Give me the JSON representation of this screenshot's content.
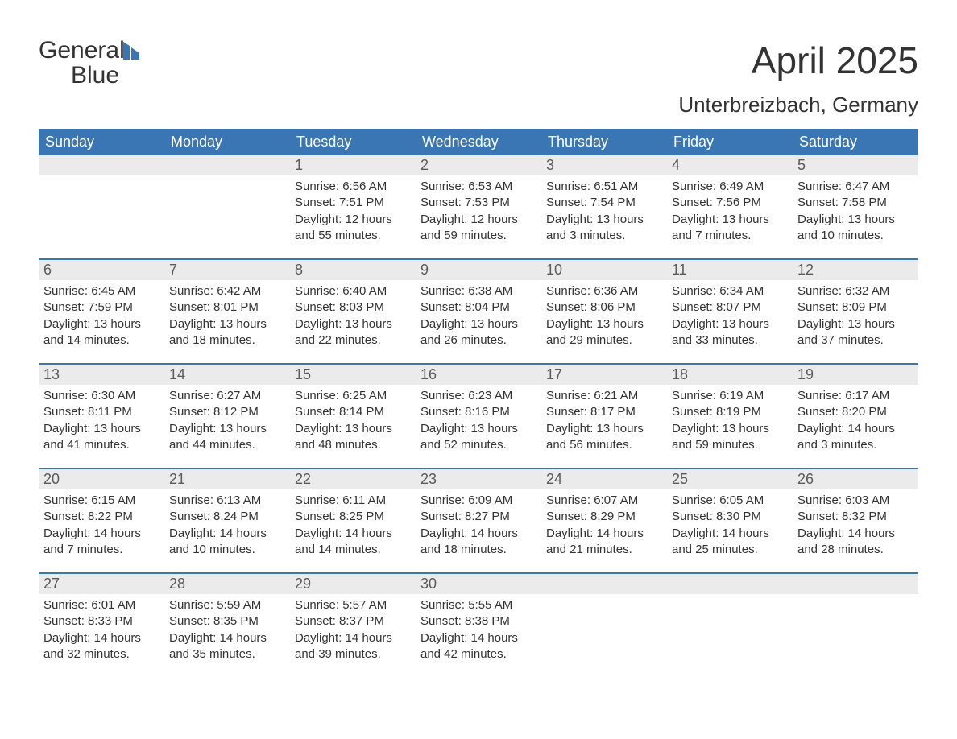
{
  "logo": {
    "word1": "General",
    "word2": "Blue",
    "icon_color": "#3976b3"
  },
  "title": "April 2025",
  "location": "Unterbreizbach, Germany",
  "colors": {
    "header_bg": "#3976b3",
    "header_text": "#ffffff",
    "daynum_bg": "#ebebeb",
    "divider": "#3976b3",
    "text": "#333333",
    "muted_text": "#5a5a5a",
    "page_bg": "#ffffff"
  },
  "weekdays": [
    "Sunday",
    "Monday",
    "Tuesday",
    "Wednesday",
    "Thursday",
    "Friday",
    "Saturday"
  ],
  "weeks": [
    [
      {
        "day": "",
        "sunrise": "",
        "sunset": "",
        "daylight1": "",
        "daylight2": ""
      },
      {
        "day": "",
        "sunrise": "",
        "sunset": "",
        "daylight1": "",
        "daylight2": ""
      },
      {
        "day": "1",
        "sunrise": "Sunrise: 6:56 AM",
        "sunset": "Sunset: 7:51 PM",
        "daylight1": "Daylight: 12 hours",
        "daylight2": "and 55 minutes."
      },
      {
        "day": "2",
        "sunrise": "Sunrise: 6:53 AM",
        "sunset": "Sunset: 7:53 PM",
        "daylight1": "Daylight: 12 hours",
        "daylight2": "and 59 minutes."
      },
      {
        "day": "3",
        "sunrise": "Sunrise: 6:51 AM",
        "sunset": "Sunset: 7:54 PM",
        "daylight1": "Daylight: 13 hours",
        "daylight2": "and 3 minutes."
      },
      {
        "day": "4",
        "sunrise": "Sunrise: 6:49 AM",
        "sunset": "Sunset: 7:56 PM",
        "daylight1": "Daylight: 13 hours",
        "daylight2": "and 7 minutes."
      },
      {
        "day": "5",
        "sunrise": "Sunrise: 6:47 AM",
        "sunset": "Sunset: 7:58 PM",
        "daylight1": "Daylight: 13 hours",
        "daylight2": "and 10 minutes."
      }
    ],
    [
      {
        "day": "6",
        "sunrise": "Sunrise: 6:45 AM",
        "sunset": "Sunset: 7:59 PM",
        "daylight1": "Daylight: 13 hours",
        "daylight2": "and 14 minutes."
      },
      {
        "day": "7",
        "sunrise": "Sunrise: 6:42 AM",
        "sunset": "Sunset: 8:01 PM",
        "daylight1": "Daylight: 13 hours",
        "daylight2": "and 18 minutes."
      },
      {
        "day": "8",
        "sunrise": "Sunrise: 6:40 AM",
        "sunset": "Sunset: 8:03 PM",
        "daylight1": "Daylight: 13 hours",
        "daylight2": "and 22 minutes."
      },
      {
        "day": "9",
        "sunrise": "Sunrise: 6:38 AM",
        "sunset": "Sunset: 8:04 PM",
        "daylight1": "Daylight: 13 hours",
        "daylight2": "and 26 minutes."
      },
      {
        "day": "10",
        "sunrise": "Sunrise: 6:36 AM",
        "sunset": "Sunset: 8:06 PM",
        "daylight1": "Daylight: 13 hours",
        "daylight2": "and 29 minutes."
      },
      {
        "day": "11",
        "sunrise": "Sunrise: 6:34 AM",
        "sunset": "Sunset: 8:07 PM",
        "daylight1": "Daylight: 13 hours",
        "daylight2": "and 33 minutes."
      },
      {
        "day": "12",
        "sunrise": "Sunrise: 6:32 AM",
        "sunset": "Sunset: 8:09 PM",
        "daylight1": "Daylight: 13 hours",
        "daylight2": "and 37 minutes."
      }
    ],
    [
      {
        "day": "13",
        "sunrise": "Sunrise: 6:30 AM",
        "sunset": "Sunset: 8:11 PM",
        "daylight1": "Daylight: 13 hours",
        "daylight2": "and 41 minutes."
      },
      {
        "day": "14",
        "sunrise": "Sunrise: 6:27 AM",
        "sunset": "Sunset: 8:12 PM",
        "daylight1": "Daylight: 13 hours",
        "daylight2": "and 44 minutes."
      },
      {
        "day": "15",
        "sunrise": "Sunrise: 6:25 AM",
        "sunset": "Sunset: 8:14 PM",
        "daylight1": "Daylight: 13 hours",
        "daylight2": "and 48 minutes."
      },
      {
        "day": "16",
        "sunrise": "Sunrise: 6:23 AM",
        "sunset": "Sunset: 8:16 PM",
        "daylight1": "Daylight: 13 hours",
        "daylight2": "and 52 minutes."
      },
      {
        "day": "17",
        "sunrise": "Sunrise: 6:21 AM",
        "sunset": "Sunset: 8:17 PM",
        "daylight1": "Daylight: 13 hours",
        "daylight2": "and 56 minutes."
      },
      {
        "day": "18",
        "sunrise": "Sunrise: 6:19 AM",
        "sunset": "Sunset: 8:19 PM",
        "daylight1": "Daylight: 13 hours",
        "daylight2": "and 59 minutes."
      },
      {
        "day": "19",
        "sunrise": "Sunrise: 6:17 AM",
        "sunset": "Sunset: 8:20 PM",
        "daylight1": "Daylight: 14 hours",
        "daylight2": "and 3 minutes."
      }
    ],
    [
      {
        "day": "20",
        "sunrise": "Sunrise: 6:15 AM",
        "sunset": "Sunset: 8:22 PM",
        "daylight1": "Daylight: 14 hours",
        "daylight2": "and 7 minutes."
      },
      {
        "day": "21",
        "sunrise": "Sunrise: 6:13 AM",
        "sunset": "Sunset: 8:24 PM",
        "daylight1": "Daylight: 14 hours",
        "daylight2": "and 10 minutes."
      },
      {
        "day": "22",
        "sunrise": "Sunrise: 6:11 AM",
        "sunset": "Sunset: 8:25 PM",
        "daylight1": "Daylight: 14 hours",
        "daylight2": "and 14 minutes."
      },
      {
        "day": "23",
        "sunrise": "Sunrise: 6:09 AM",
        "sunset": "Sunset: 8:27 PM",
        "daylight1": "Daylight: 14 hours",
        "daylight2": "and 18 minutes."
      },
      {
        "day": "24",
        "sunrise": "Sunrise: 6:07 AM",
        "sunset": "Sunset: 8:29 PM",
        "daylight1": "Daylight: 14 hours",
        "daylight2": "and 21 minutes."
      },
      {
        "day": "25",
        "sunrise": "Sunrise: 6:05 AM",
        "sunset": "Sunset: 8:30 PM",
        "daylight1": "Daylight: 14 hours",
        "daylight2": "and 25 minutes."
      },
      {
        "day": "26",
        "sunrise": "Sunrise: 6:03 AM",
        "sunset": "Sunset: 8:32 PM",
        "daylight1": "Daylight: 14 hours",
        "daylight2": "and 28 minutes."
      }
    ],
    [
      {
        "day": "27",
        "sunrise": "Sunrise: 6:01 AM",
        "sunset": "Sunset: 8:33 PM",
        "daylight1": "Daylight: 14 hours",
        "daylight2": "and 32 minutes."
      },
      {
        "day": "28",
        "sunrise": "Sunrise: 5:59 AM",
        "sunset": "Sunset: 8:35 PM",
        "daylight1": "Daylight: 14 hours",
        "daylight2": "and 35 minutes."
      },
      {
        "day": "29",
        "sunrise": "Sunrise: 5:57 AM",
        "sunset": "Sunset: 8:37 PM",
        "daylight1": "Daylight: 14 hours",
        "daylight2": "and 39 minutes."
      },
      {
        "day": "30",
        "sunrise": "Sunrise: 5:55 AM",
        "sunset": "Sunset: 8:38 PM",
        "daylight1": "Daylight: 14 hours",
        "daylight2": "and 42 minutes."
      },
      {
        "day": "",
        "sunrise": "",
        "sunset": "",
        "daylight1": "",
        "daylight2": ""
      },
      {
        "day": "",
        "sunrise": "",
        "sunset": "",
        "daylight1": "",
        "daylight2": ""
      },
      {
        "day": "",
        "sunrise": "",
        "sunset": "",
        "daylight1": "",
        "daylight2": ""
      }
    ]
  ]
}
